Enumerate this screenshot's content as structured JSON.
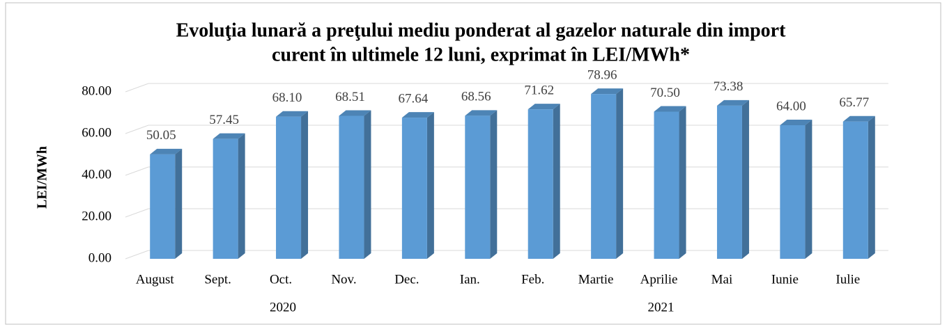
{
  "chart_data": {
    "type": "bar3d",
    "title": "Evoluţia lunară a preţului mediu ponderat al gazelor naturale din import",
    "subtitle": "curent în ultimele 12 luni, exprimat în LEI/MWh*",
    "y_label": "LEI/MWh",
    "categories": [
      "August",
      "Sept.",
      "Oct.",
      "Nov.",
      "Dec.",
      "Ian.",
      "Feb.",
      "Martie",
      "Aprilie",
      "Mai",
      "Iunie",
      "Iulie"
    ],
    "category_groups": [
      {
        "label": "2020",
        "count": 5
      },
      {
        "label": "2021",
        "count": 7
      }
    ],
    "values": [
      50.05,
      57.45,
      68.1,
      68.51,
      67.64,
      68.56,
      71.62,
      78.96,
      70.5,
      73.38,
      64,
      65.77
    ],
    "value_labels": [
      "50.05",
      "57.45",
      "68.10",
      "68.51",
      "67.64",
      "68.56",
      "71.62",
      "78.96",
      "70.50",
      "73.38",
      "64.00",
      "65.77"
    ],
    "color": "#5b9bd5",
    "ylim": [
      0,
      80
    ],
    "yticks": [
      {
        "value": 0,
        "label": "0.00"
      },
      {
        "value": 20,
        "label": "20.00"
      },
      {
        "value": 40,
        "label": "40.00"
      },
      {
        "value": 60,
        "label": "60.00"
      },
      {
        "value": 80,
        "label": "80.00"
      }
    ],
    "grid": true
  }
}
